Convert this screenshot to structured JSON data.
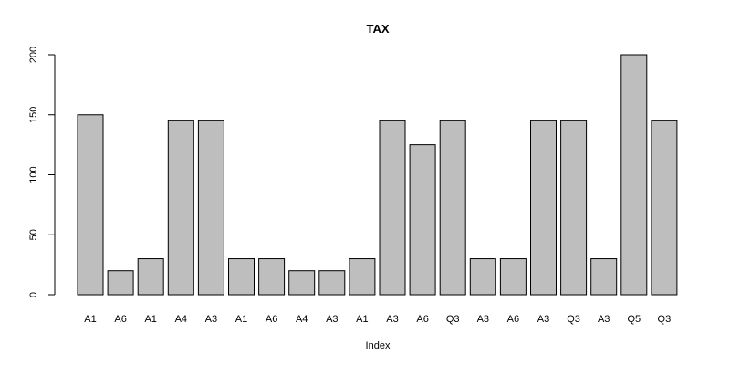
{
  "chart_data": {
    "type": "bar",
    "title": "TAX",
    "xlabel": "Index",
    "ylabel": "",
    "ylim": [
      0,
      200
    ],
    "yticks": [
      0,
      50,
      100,
      150,
      200
    ],
    "categories": [
      "A1",
      "A6",
      "A1",
      "A4",
      "A3",
      "A1",
      "A6",
      "A4",
      "A3",
      "A1",
      "A3",
      "A6",
      "Q3",
      "A3",
      "A6",
      "A3",
      "Q3",
      "A3",
      "Q5",
      "Q3"
    ],
    "values": [
      150,
      20,
      30,
      145,
      145,
      30,
      30,
      20,
      20,
      30,
      145,
      125,
      145,
      30,
      30,
      145,
      145,
      30,
      200,
      145
    ],
    "bar_color": "#bebebe",
    "border_color": "#000000",
    "grid": false
  }
}
